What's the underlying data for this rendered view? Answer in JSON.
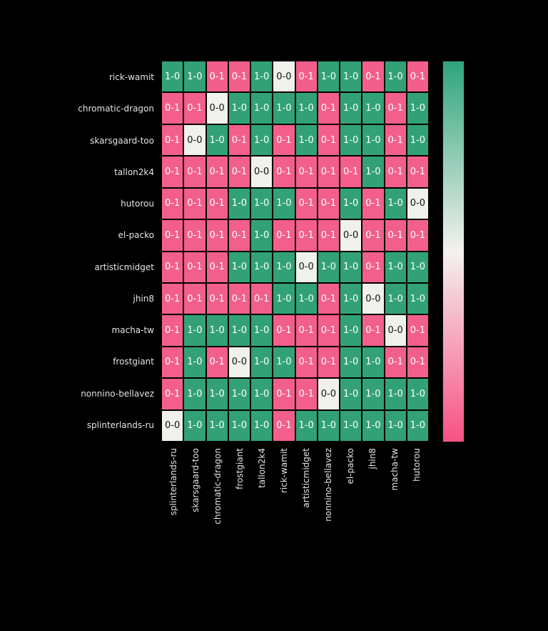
{
  "chart_data": {
    "type": "heatmap",
    "title": "",
    "xlabel": "",
    "ylabel": "",
    "legend": "colorbar-right",
    "grid": "2px black cell separators",
    "rows": [
      "rick-wamit",
      "chromatic-dragon",
      "skarsgaard-too",
      "tallon2k4",
      "hutorou",
      "el-packo",
      "artisticmidget",
      "jhin8",
      "macha-tw",
      "frostgiant",
      "nonnino-bellavez",
      "splinterlands-ru"
    ],
    "columns": [
      "splinterlands-ru",
      "skarsgaard-too",
      "chromatic-dragon",
      "frostgiant",
      "tallon2k4",
      "rick-wamit",
      "artisticmidget",
      "nonnino-bellavez",
      "el-packo",
      "jhin8",
      "macha-tw",
      "hutorou"
    ],
    "values": [
      [
        "1-0",
        "1-0",
        "0-1",
        "0-1",
        "1-0",
        "0-0",
        "0-1",
        "1-0",
        "1-0",
        "0-1",
        "1-0",
        "0-1"
      ],
      [
        "0-1",
        "0-1",
        "0-0",
        "1-0",
        "1-0",
        "1-0",
        "1-0",
        "0-1",
        "1-0",
        "1-0",
        "0-1",
        "1-0"
      ],
      [
        "0-1",
        "0-0",
        "1-0",
        "0-1",
        "1-0",
        "0-1",
        "1-0",
        "0-1",
        "1-0",
        "1-0",
        "0-1",
        "1-0"
      ],
      [
        "0-1",
        "0-1",
        "0-1",
        "0-1",
        "0-0",
        "0-1",
        "0-1",
        "0-1",
        "0-1",
        "1-0",
        "0-1",
        "0-1"
      ],
      [
        "0-1",
        "0-1",
        "0-1",
        "1-0",
        "1-0",
        "1-0",
        "0-1",
        "0-1",
        "1-0",
        "0-1",
        "1-0",
        "0-0"
      ],
      [
        "0-1",
        "0-1",
        "0-1",
        "0-1",
        "1-0",
        "0-1",
        "0-1",
        "0-1",
        "0-0",
        "0-1",
        "0-1",
        "0-1"
      ],
      [
        "0-1",
        "0-1",
        "0-1",
        "1-0",
        "1-0",
        "1-0",
        "0-0",
        "1-0",
        "1-0",
        "0-1",
        "1-0",
        "1-0"
      ],
      [
        "0-1",
        "0-1",
        "0-1",
        "0-1",
        "0-1",
        "1-0",
        "1-0",
        "0-1",
        "1-0",
        "0-0",
        "1-0",
        "1-0"
      ],
      [
        "0-1",
        "1-0",
        "1-0",
        "1-0",
        "1-0",
        "0-1",
        "0-1",
        "0-1",
        "1-0",
        "0-1",
        "0-0",
        "0-1"
      ],
      [
        "0-1",
        "1-0",
        "0-1",
        "0-0",
        "1-0",
        "1-0",
        "0-1",
        "0-1",
        "1-0",
        "1-0",
        "0-1",
        "0-1"
      ],
      [
        "0-1",
        "1-0",
        "1-0",
        "1-0",
        "1-0",
        "0-1",
        "0-1",
        "0-0",
        "1-0",
        "1-0",
        "1-0",
        "1-0"
      ],
      [
        "0-0",
        "1-0",
        "1-0",
        "1-0",
        "1-0",
        "0-1",
        "1-0",
        "1-0",
        "1-0",
        "1-0",
        "1-0",
        "1-0"
      ]
    ],
    "value_color_map": {
      "1-0": "#32a276",
      "0-1": "#f25f8c",
      "0-0": "#f0f0ed"
    },
    "colors": {
      "background": "#000000",
      "label_text": "#e4e4e4",
      "cell_text_on_color": "#ffffff",
      "cell_text_on_white": "#111111",
      "colorbar_top": "#2ea47b",
      "colorbar_mid": "#f4f1ef",
      "colorbar_bottom": "#f65182"
    }
  }
}
